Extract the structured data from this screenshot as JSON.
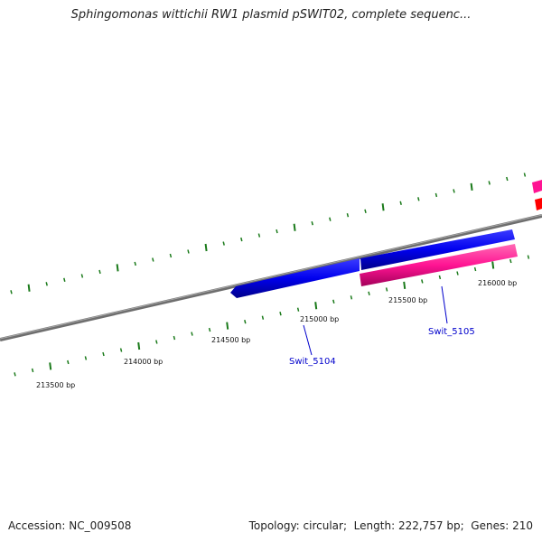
{
  "title": "Sphingomonas wittichii RW1 plasmid pSWIT02, complete sequenc...",
  "footer": {
    "accession_label": "Accession:",
    "accession": "NC_009508",
    "topology_label": "Topology:",
    "topology": "circular",
    "length_label": "Length:",
    "length": "222,757 bp",
    "genes_label": "Genes:",
    "genes": "210"
  },
  "ticks": [
    "213500 bp",
    "214000 bp",
    "214500 bp",
    "215000 bp",
    "215500 bp",
    "216000 bp"
  ],
  "genes": [
    {
      "name": "Swit_5104",
      "strand": "reverse",
      "color": "#0000ff"
    },
    {
      "name": "Swit_5105",
      "strand": "forward",
      "color": "#ff1493"
    }
  ],
  "colors": {
    "backbone": "#7f7f7f",
    "tick": "#1a7a1a",
    "forward_gene": "#ff1493",
    "reverse_gene": "#0000ff",
    "partial_red": "#ff0000"
  }
}
